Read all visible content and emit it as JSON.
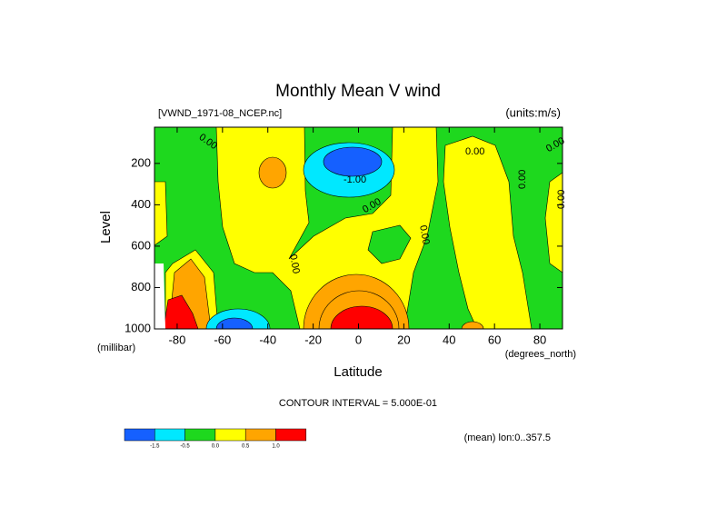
{
  "chart_data": {
    "type": "contour",
    "title": "Monthly Mean V wind",
    "subtitle_left": "[VWND_1971-08_NCEP.nc]",
    "subtitle_right": "(units:m/s)",
    "x_label": "Latitude",
    "x_unit": "(degrees_north)",
    "y_label": "Level",
    "y_unit": "(millibar)",
    "xlim": [
      -90,
      90
    ],
    "xticks": [
      -80,
      -60,
      -40,
      -20,
      0,
      20,
      40,
      60,
      80
    ],
    "ylim": [
      1000,
      25
    ],
    "yticks": [
      200,
      400,
      600,
      800,
      1000
    ],
    "contour_labels": [
      "0.00",
      "-1.00",
      "0.00",
      "0.00",
      "0.00",
      "0.00",
      "0.00",
      "0.00",
      "0.00"
    ],
    "contour_interval": "CONTOUR INTERVAL = 5.000E-01",
    "footer_right": "(mean) lon:0..357.5",
    "colorbar": {
      "labels": [
        "-1.5",
        "-0.5",
        "0.0",
        "0.5",
        "1.0"
      ],
      "colors": [
        "#1560ff",
        "#00e8ff",
        "#1ed81e",
        "#ffff00",
        "#ffa500",
        "#ff0000"
      ]
    }
  }
}
